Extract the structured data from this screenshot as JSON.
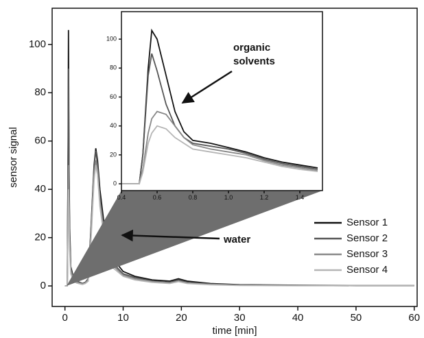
{
  "chart_data": [
    {
      "type": "line",
      "xlabel": "time [min]",
      "ylabel": "sensor signal",
      "annotation": "water",
      "xlim": [
        -2.2,
        60.5
      ],
      "ylim": [
        -8.5,
        115
      ],
      "xticks": [
        0,
        10,
        20,
        30,
        40,
        50,
        60
      ],
      "yticks": [
        0,
        20,
        40,
        60,
        80,
        100
      ],
      "legend": "lower right",
      "x": [
        0,
        0.4,
        0.55,
        0.6,
        0.7,
        0.8,
        1.0,
        1.5,
        2,
        3,
        3.5,
        4,
        4.5,
        5,
        5.3,
        5.6,
        6,
        7,
        8,
        10,
        12,
        15,
        18,
        19.5,
        21,
        25,
        30,
        40,
        50,
        60
      ],
      "series": [
        {
          "name": "Sensor 1",
          "color": "#111111",
          "values": [
            0,
            0,
            60,
            106,
            50,
            25,
            8,
            3,
            2,
            1,
            1.5,
            3,
            25,
            50,
            57,
            52,
            40,
            20,
            12,
            6,
            4,
            2.5,
            2,
            3,
            2,
            1,
            0.5,
            0.3,
            0.2,
            0.2
          ]
        },
        {
          "name": "Sensor 2",
          "color": "#555555",
          "values": [
            0,
            0,
            55,
            90,
            45,
            22,
            7,
            3,
            2,
            1,
            1.5,
            3,
            24,
            49,
            56,
            50,
            37,
            18,
            10,
            5,
            3.5,
            2,
            1.5,
            2.5,
            1.5,
            0.8,
            0.4,
            0.2,
            0.1,
            0.1
          ]
        },
        {
          "name": "Sensor 3",
          "color": "#888888",
          "values": [
            0,
            0,
            35,
            50,
            35,
            18,
            6,
            2.5,
            1.5,
            0.8,
            1.2,
            2.5,
            22,
            46,
            52,
            48,
            35,
            17,
            9,
            4.5,
            3,
            1.8,
            1.2,
            2,
            1.2,
            0.6,
            0.3,
            0.2,
            0.1,
            0.1
          ]
        },
        {
          "name": "Sensor 4",
          "color": "#b5b5b5",
          "values": [
            0,
            0,
            28,
            40,
            30,
            15,
            5,
            2,
            1.2,
            0.6,
            1,
            2,
            20,
            44,
            50,
            46,
            33,
            15,
            8,
            4,
            2.5,
            1.5,
            1,
            1.8,
            1,
            0.5,
            0.2,
            0.1,
            0.1,
            0.1
          ]
        }
      ]
    },
    {
      "type": "line",
      "annotation": "organic solvents",
      "xlim": [
        0.4,
        1.527
      ],
      "ylim": [
        -4.7,
        119
      ],
      "xticks": [
        0.4,
        0.6,
        0.8,
        {
          "value": 1,
          "label": "1.0"
        },
        1.2,
        1.4
      ],
      "yticks": [
        0,
        20,
        40,
        60,
        80,
        100
      ],
      "x": [
        0.4,
        0.5,
        0.52,
        0.55,
        0.57,
        0.6,
        0.65,
        0.7,
        0.75,
        0.8,
        0.9,
        1.0,
        1.1,
        1.2,
        1.3,
        1.4,
        1.5
      ],
      "series": [
        {
          "color": "#111111",
          "values": [
            0,
            0,
            20,
            80,
            106,
            100,
            75,
            50,
            36,
            30,
            28,
            25,
            22,
            18,
            15,
            13,
            11
          ]
        },
        {
          "color": "#555555",
          "values": [
            0,
            0,
            20,
            75,
            90,
            78,
            55,
            40,
            32,
            28,
            26,
            24,
            21,
            17,
            14,
            12,
            10
          ]
        },
        {
          "color": "#888888",
          "values": [
            0,
            0,
            10,
            35,
            45,
            50,
            48,
            40,
            32,
            27,
            24,
            22,
            20,
            16,
            13,
            11,
            9
          ]
        },
        {
          "color": "#b5b5b5",
          "values": [
            0,
            0,
            8,
            28,
            35,
            40,
            38,
            32,
            28,
            24,
            22,
            20,
            18,
            15,
            12,
            10,
            8.5
          ]
        }
      ]
    }
  ]
}
